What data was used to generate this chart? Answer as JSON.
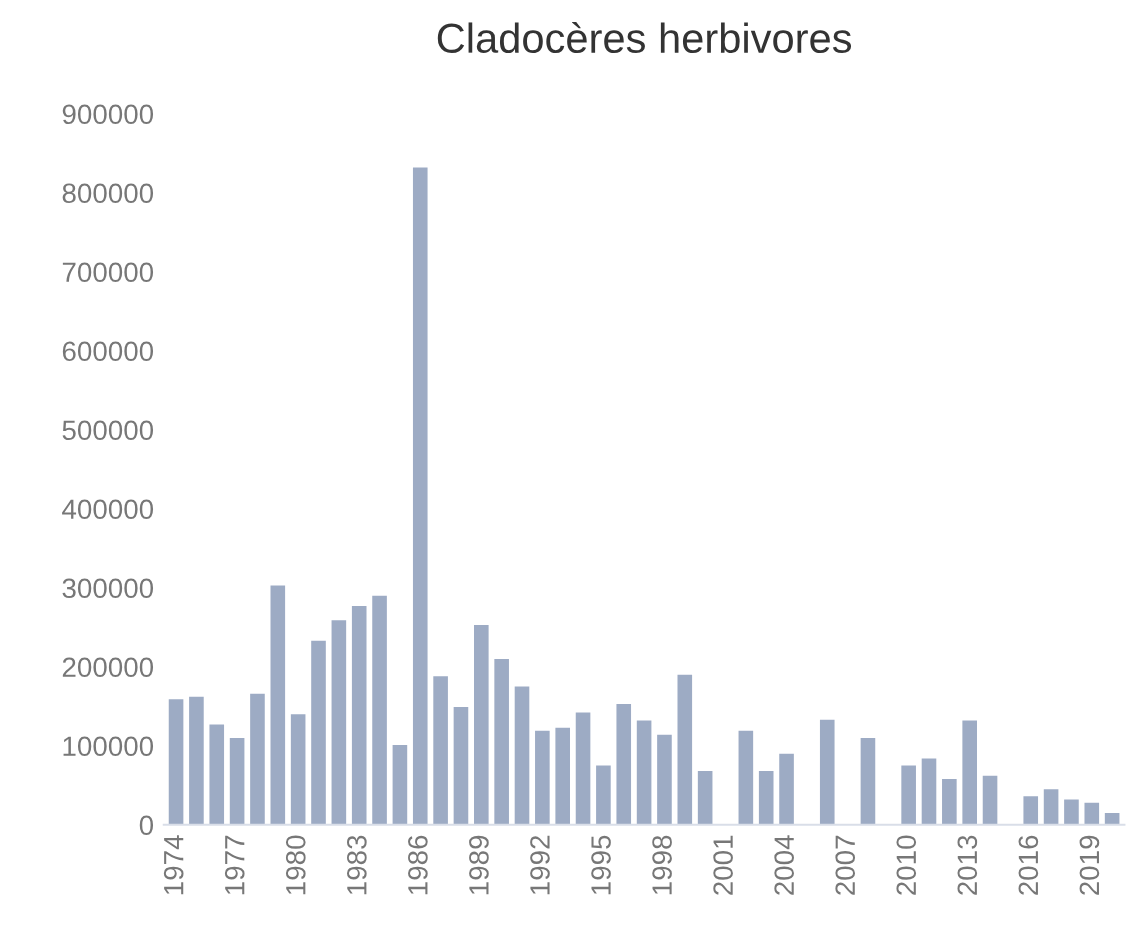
{
  "chart_data": {
    "type": "bar",
    "title": "Cladocères herbivores",
    "categories": [
      "1974",
      null,
      null,
      "1977",
      null,
      null,
      "1980",
      null,
      null,
      "1983",
      null,
      null,
      "1986",
      null,
      null,
      "1989",
      null,
      null,
      "1992",
      null,
      null,
      "1995",
      null,
      null,
      "1998",
      null,
      null,
      "2001",
      null,
      null,
      "2004",
      null,
      null,
      "2007",
      null,
      null,
      "2010",
      null,
      null,
      "2013",
      null,
      null,
      "2016",
      null,
      null,
      "2019",
      null
    ],
    "values": [
      160000,
      163000,
      128000,
      111000,
      167000,
      304000,
      141000,
      234000,
      260000,
      278000,
      291000,
      102000,
      833000,
      189000,
      150000,
      254000,
      211000,
      176000,
      120000,
      124000,
      143000,
      76000,
      154000,
      133000,
      115000,
      191000,
      69000,
      null,
      120000,
      69000,
      91000,
      null,
      134000,
      null,
      111000,
      null,
      76000,
      85000,
      59000,
      133000,
      63000,
      null,
      37000,
      46000,
      33000,
      29000,
      16000
    ],
    "color": "#9dabc4",
    "ylim": [
      0,
      900000
    ],
    "yticks": [
      0,
      100000,
      200000,
      300000,
      400000,
      500000,
      600000,
      700000,
      800000,
      900000
    ],
    "grid": false
  }
}
